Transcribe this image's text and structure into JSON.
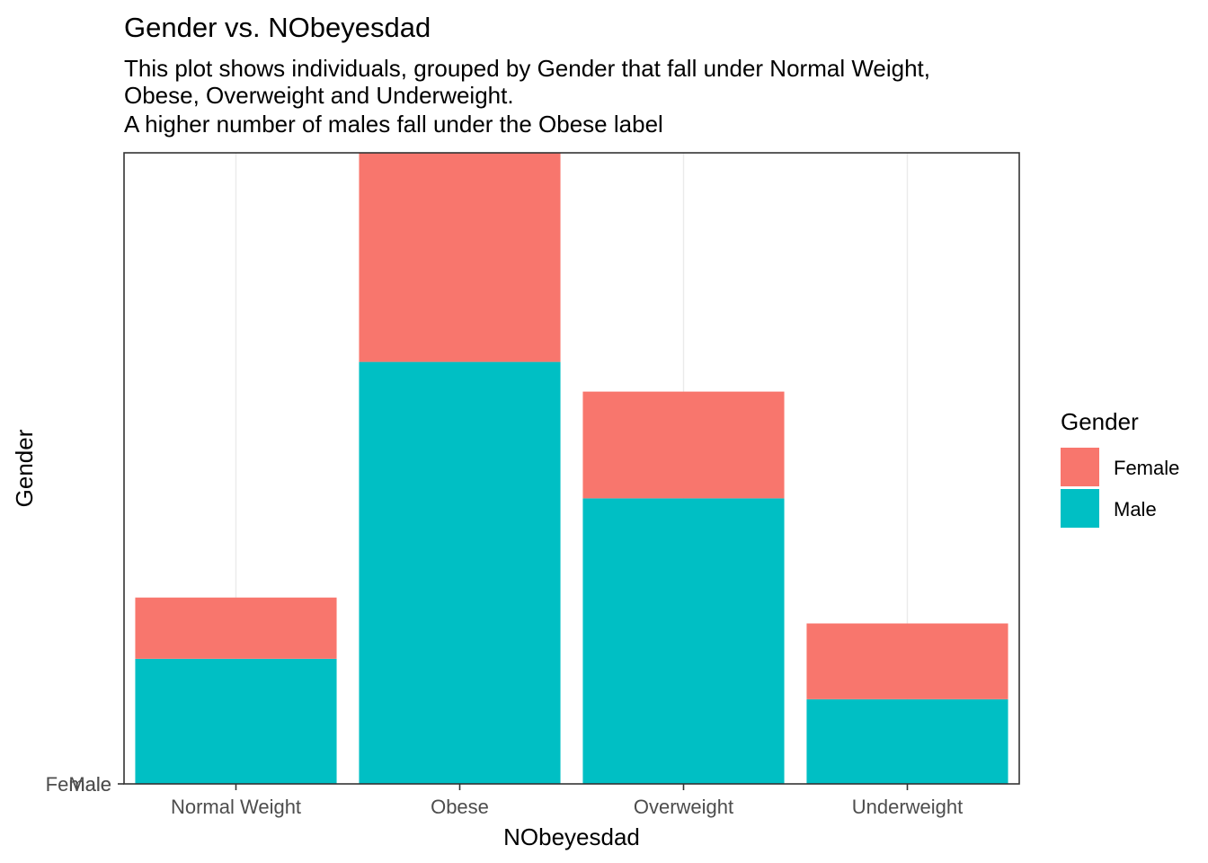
{
  "chart_data": {
    "type": "bar",
    "stacked": true,
    "title": "Gender vs. NObeyesdad",
    "subtitle": [
      "This plot shows individuals, grouped by Gender that fall under Normal Weight,",
      "Obese, Overweight and Underweight.",
      "A higher number of males fall under the Obese label"
    ],
    "xlabel": "NObeyesdad",
    "ylabel": "Gender",
    "categories": [
      "Normal Weight",
      "Obese",
      "Overweight",
      "Underweight"
    ],
    "y_tick_labels": [
      "Female",
      "Male"
    ],
    "series": [
      {
        "name": "Male",
        "values": [
          198,
          668,
          452,
          134
        ]
      },
      {
        "name": "Female",
        "values": [
          97,
          331,
          169,
          120
        ]
      }
    ],
    "ylim": [
      0,
      999
    ],
    "grid": {
      "major_x": true,
      "major_y": false
    },
    "legend": {
      "title": "Gender",
      "placement": "right",
      "entries": [
        "Female",
        "Male"
      ]
    },
    "colors": {
      "Female": "#F8766D",
      "Male": "#00BFC4"
    }
  }
}
